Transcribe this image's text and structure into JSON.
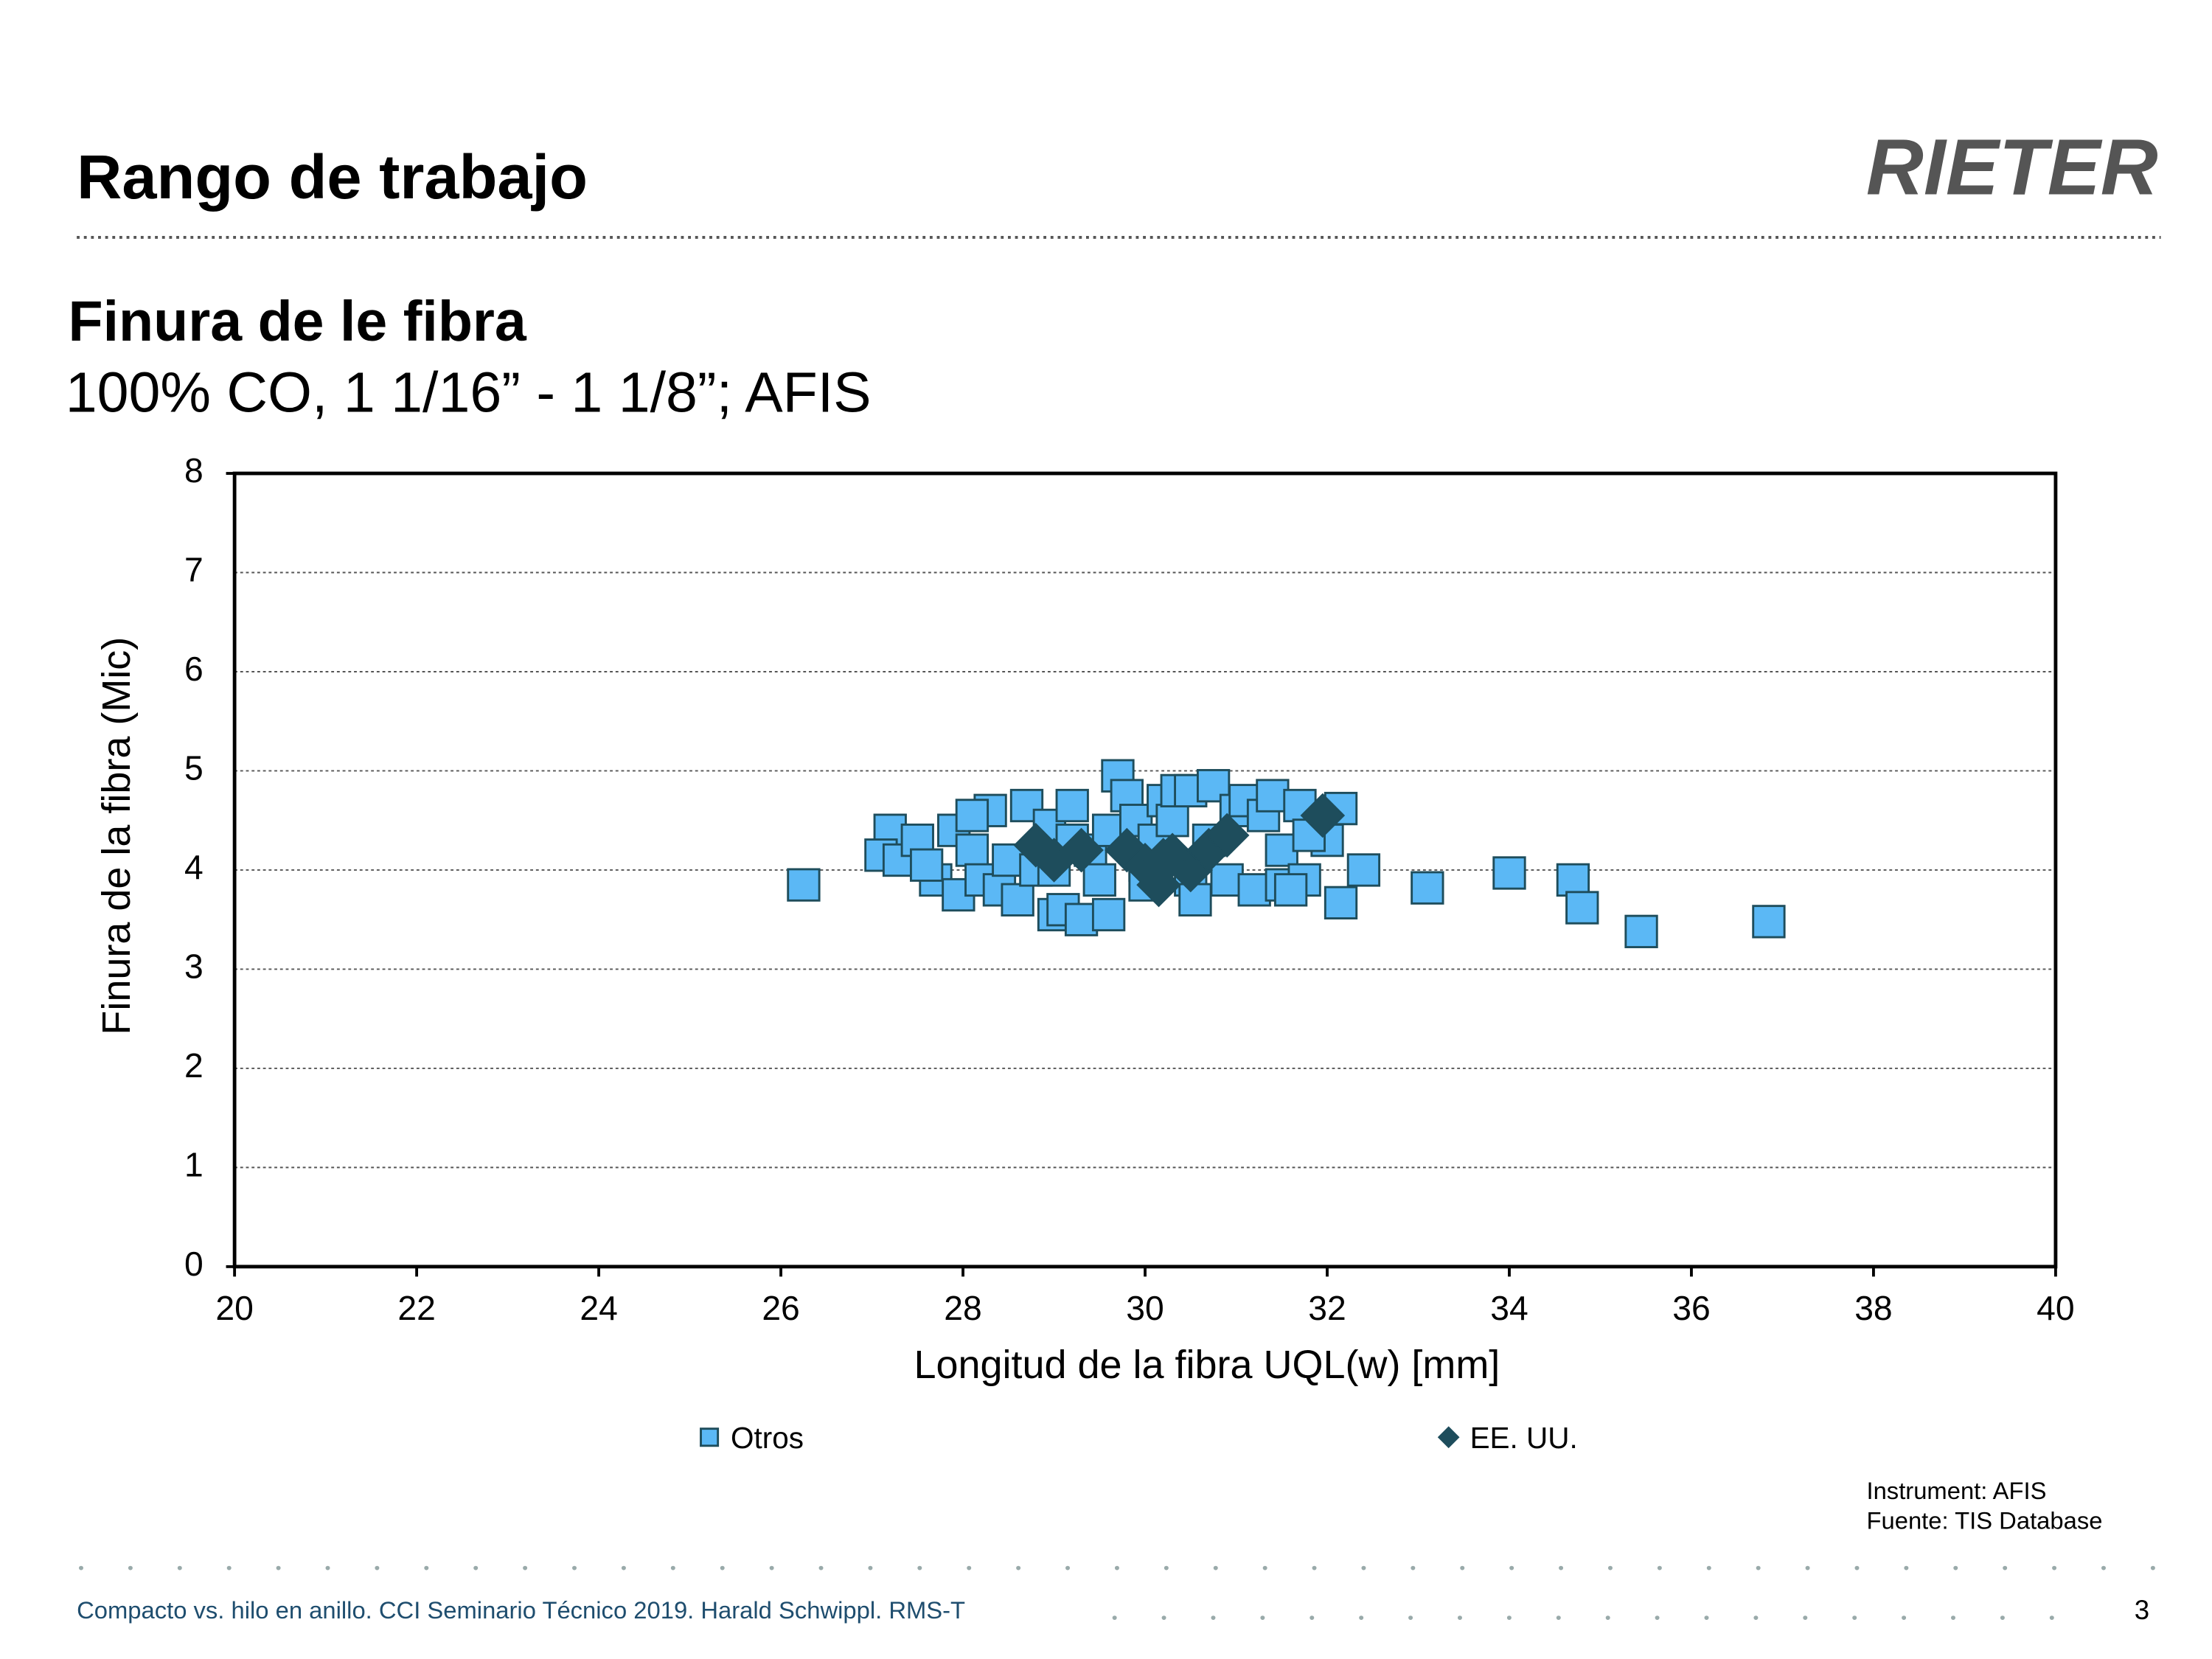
{
  "header": {
    "title": "Rango de trabajo",
    "logo": "RIETER"
  },
  "chart_data": {
    "type": "scatter",
    "title": "Finura de le fibra",
    "subtitle": "100% CO, 1 1/16” - 1 1/8”; AFIS",
    "x_label": "Longitud de la fibra UQL(w) [mm]",
    "y_label": "Finura de la fibra (Mic)",
    "xlim": [
      20,
      40
    ],
    "xticks": [
      20,
      22,
      24,
      26,
      28,
      30,
      32,
      34,
      36,
      38,
      40
    ],
    "ylim": [
      0,
      8
    ],
    "yticks": [
      0,
      1,
      2,
      3,
      4,
      5,
      6,
      7,
      8
    ],
    "grid": true,
    "legend": "bottom",
    "series": [
      {
        "name": "Otros",
        "color": "#5bb8f5",
        "marker": "square",
        "x": [
          26.25,
          33.1,
          34.0,
          34.7,
          34.8,
          35.45,
          36.85,
          32.4,
          32.15,
          32.15,
          32.0,
          27.2,
          27.1,
          27.3,
          27.5,
          27.7,
          27.9,
          27.95,
          28.1,
          28.3,
          28.2,
          28.4,
          28.5,
          28.7,
          28.6,
          28.8,
          28.95,
          29.0,
          29.1,
          29.2,
          29.3,
          29.4,
          29.5,
          29.6,
          29.6,
          29.7,
          29.8,
          29.9,
          30.0,
          30.1,
          30.2,
          30.3,
          30.35,
          30.5,
          30.5,
          30.55,
          30.7,
          30.75,
          30.9,
          31.0,
          31.1,
          31.2,
          31.3,
          31.4,
          31.5,
          31.5,
          31.7,
          31.75,
          31.8,
          31.6,
          29.0,
          28.1,
          27.6,
          30.0,
          29.2
        ],
        "values": [
          3.85,
          3.82,
          3.97,
          3.9,
          3.62,
          3.38,
          3.48,
          4.0,
          4.62,
          3.67,
          4.3,
          4.4,
          4.15,
          4.1,
          4.3,
          3.9,
          4.4,
          3.75,
          4.2,
          4.6,
          3.9,
          3.8,
          4.1,
          4.65,
          3.7,
          4.0,
          4.45,
          3.55,
          3.6,
          4.65,
          3.5,
          4.2,
          3.9,
          3.55,
          4.4,
          4.95,
          4.75,
          4.5,
          4.05,
          4.3,
          4.7,
          4.5,
          4.8,
          3.9,
          4.8,
          3.7,
          4.3,
          4.85,
          3.9,
          4.6,
          4.7,
          3.8,
          4.55,
          4.75,
          3.85,
          4.2,
          4.65,
          3.9,
          4.35,
          3.8,
          4.0,
          4.55,
          4.05,
          3.85,
          4.3
        ]
      },
      {
        "name": "EE. UU.",
        "color": "#1e4d5c",
        "marker": "diamond",
        "x": [
          28.8,
          29.0,
          29.3,
          29.8,
          30.0,
          30.15,
          30.3,
          30.5,
          30.7,
          30.9,
          31.95,
          30.2
        ],
        "values": [
          4.25,
          4.1,
          4.2,
          4.2,
          4.05,
          3.85,
          4.15,
          4.0,
          4.2,
          4.35,
          4.55,
          4.1
        ]
      }
    ]
  },
  "notes": [
    "Instrument: AFIS",
    "Fuente: TIS Database"
  ],
  "footer": {
    "text": "Compacto vs. hilo en anillo. CCI Seminario Técnico 2019. Harald Schwippl. RMS-T",
    "page": "3"
  }
}
